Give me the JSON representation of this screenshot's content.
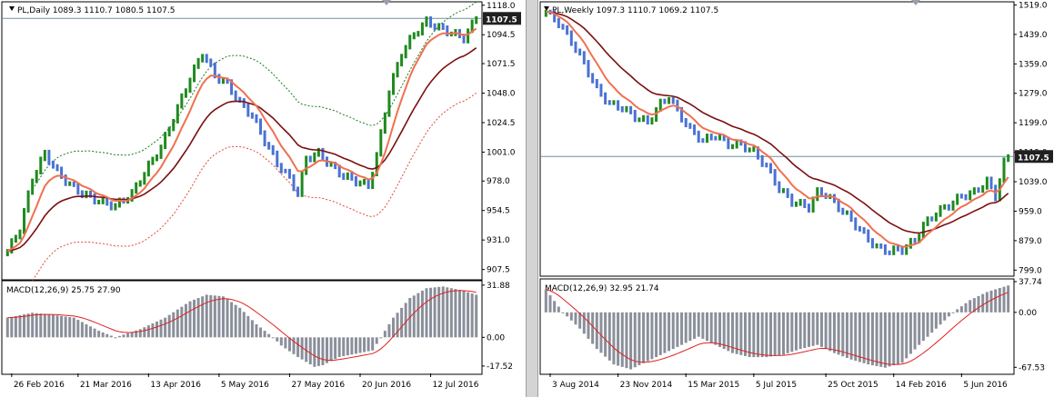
{
  "colors": {
    "bull": "#1f8a1f",
    "bear": "#4a72d4",
    "ema_fast": "#f07050",
    "ema_slow": "#7a1010",
    "env_upper": "#1a7a1a",
    "env_lower": "#e04a3a",
    "macd_hist": "#8a8f9a",
    "macd_signal": "#e02020",
    "price_line": "#6b8fa3",
    "chart_bg": "#ffffff",
    "axis_bg": "#ffffff",
    "divider": "#c0c0c0",
    "price_label_bg": "#202020",
    "price_label_fg": "#ffffff"
  },
  "charts": [
    {
      "id": "daily",
      "header": "PL,Daily  1089.3 1110.7 1080.5 1107.5",
      "price_label": "1107.5",
      "current_price": 1107.5,
      "price_min": 900,
      "price_max": 1120,
      "price_ticks": [
        "1118.0",
        "1094.5",
        "1071.5",
        "1048.0",
        "1024.5",
        "1001.0",
        "978.0",
        "954.5",
        "931.0",
        "907.5"
      ],
      "price_tick_values": [
        1118.0,
        1094.5,
        1071.5,
        1048.0,
        1024.5,
        1001.0,
        978.0,
        954.5,
        931.0,
        907.5
      ],
      "macd_header": "MACD(12,26,9) 25.75 27.90",
      "macd_min": -22,
      "macd_max": 34,
      "macd_ticks": [
        "31.88",
        "0.00",
        "-17.52"
      ],
      "macd_tick_values": [
        31.88,
        0,
        -17.52
      ],
      "dates": [
        "26 Feb 2016",
        "21 Mar 2016",
        "13 Apr 2016",
        "5 May 2016",
        "27 May 2016",
        "20 Jun 2016",
        "12 Jul 2016"
      ],
      "date_index": [
        1,
        17,
        34,
        51,
        68,
        85,
        102
      ],
      "bars": 114,
      "anchors": [
        [
          0,
          922
        ],
        [
          3,
          940
        ],
        [
          6,
          980
        ],
        [
          9,
          1000
        ],
        [
          12,
          985
        ],
        [
          15,
          975
        ],
        [
          18,
          968
        ],
        [
          22,
          962
        ],
        [
          26,
          958
        ],
        [
          30,
          968
        ],
        [
          34,
          990
        ],
        [
          37,
          1005
        ],
        [
          40,
          1028
        ],
        [
          44,
          1060
        ],
        [
          47,
          1080
        ],
        [
          50,
          1062
        ],
        [
          53,
          1055
        ],
        [
          56,
          1040
        ],
        [
          59,
          1030
        ],
        [
          62,
          1010
        ],
        [
          65,
          992
        ],
        [
          68,
          980
        ],
        [
          70,
          968
        ],
        [
          72,
          996
        ],
        [
          75,
          1000
        ],
        [
          78,
          990
        ],
        [
          81,
          982
        ],
        [
          84,
          978
        ],
        [
          87,
          974
        ],
        [
          89,
          998
        ],
        [
          92,
          1050
        ],
        [
          95,
          1080
        ],
        [
          98,
          1095
        ],
        [
          101,
          1105
        ],
        [
          104,
          1100
        ],
        [
          107,
          1096
        ],
        [
          110,
          1092
        ],
        [
          113,
          1107.5
        ]
      ],
      "envelope": true,
      "macd_anchors": [
        [
          0,
          12
        ],
        [
          6,
          15
        ],
        [
          10,
          14
        ],
        [
          16,
          12
        ],
        [
          22,
          4
        ],
        [
          26,
          0
        ],
        [
          32,
          5
        ],
        [
          38,
          12
        ],
        [
          44,
          22
        ],
        [
          48,
          26
        ],
        [
          52,
          25
        ],
        [
          56,
          18
        ],
        [
          60,
          8
        ],
        [
          64,
          0
        ],
        [
          66,
          -5
        ],
        [
          70,
          -12
        ],
        [
          74,
          -18
        ],
        [
          76,
          -17
        ],
        [
          80,
          -12
        ],
        [
          84,
          -10
        ],
        [
          88,
          -8
        ],
        [
          90,
          0
        ],
        [
          93,
          12
        ],
        [
          97,
          24
        ],
        [
          101,
          30
        ],
        [
          105,
          31
        ],
        [
          109,
          29
        ],
        [
          113,
          26
        ]
      ]
    },
    {
      "id": "weekly",
      "header": "PL,Weekly  1097.3 1110.7 1069.2 1107.5",
      "price_label": "1107.5",
      "current_price": 1107.5,
      "price_min": 785,
      "price_max": 1525,
      "price_ticks": [
        "1519.0",
        "1439.0",
        "1359.0",
        "1279.0",
        "1199.0",
        "1119.0",
        "1039.0",
        "959.0",
        "879.0",
        "799.0"
      ],
      "price_tick_values": [
        1519.0,
        1439.0,
        1359.0,
        1279.0,
        1199.0,
        1119.0,
        1039.0,
        959.0,
        879.0,
        799.0
      ],
      "macd_header": "MACD(12,26,9) 32.95 21.74",
      "macd_min": -75,
      "macd_max": 40,
      "macd_ticks": [
        "37.74",
        "0.00",
        "-67.53"
      ],
      "macd_tick_values": [
        37.74,
        0,
        -67.53
      ],
      "dates": [
        "3 Aug 2014",
        "23 Nov 2014",
        "15 Mar 2015",
        "5 Jul 2015",
        "25 Oct 2015",
        "14 Feb 2016",
        "5 Jun 2016"
      ],
      "date_index": [
        1,
        17,
        33,
        49,
        66,
        82,
        98
      ],
      "bars": 110,
      "anchors": [
        [
          0,
          1500
        ],
        [
          3,
          1470
        ],
        [
          6,
          1420
        ],
        [
          9,
          1360
        ],
        [
          12,
          1290
        ],
        [
          15,
          1250
        ],
        [
          18,
          1240
        ],
        [
          21,
          1215
        ],
        [
          24,
          1200
        ],
        [
          27,
          1250
        ],
        [
          29,
          1270
        ],
        [
          31,
          1230
        ],
        [
          34,
          1180
        ],
        [
          37,
          1150
        ],
        [
          40,
          1165
        ],
        [
          43,
          1140
        ],
        [
          46,
          1140
        ],
        [
          49,
          1120
        ],
        [
          52,
          1080
        ],
        [
          55,
          1020
        ],
        [
          58,
          985
        ],
        [
          62,
          970
        ],
        [
          64,
          1010
        ],
        [
          66,
          1005
        ],
        [
          69,
          970
        ],
        [
          72,
          935
        ],
        [
          75,
          895
        ],
        [
          78,
          860
        ],
        [
          81,
          850
        ],
        [
          84,
          855
        ],
        [
          87,
          880
        ],
        [
          89,
          920
        ],
        [
          92,
          955
        ],
        [
          95,
          975
        ],
        [
          98,
          1000
        ],
        [
          101,
          1010
        ],
        [
          104,
          1040
        ],
        [
          106,
          1000
        ],
        [
          108,
          1090
        ],
        [
          109,
          1107.5
        ]
      ],
      "envelope": false,
      "macd_anchors": [
        [
          0,
          28
        ],
        [
          4,
          0
        ],
        [
          8,
          -20
        ],
        [
          12,
          -45
        ],
        [
          16,
          -64
        ],
        [
          20,
          -70
        ],
        [
          24,
          -60
        ],
        [
          28,
          -50
        ],
        [
          32,
          -40
        ],
        [
          36,
          -30
        ],
        [
          40,
          -40
        ],
        [
          44,
          -50
        ],
        [
          48,
          -55
        ],
        [
          52,
          -55
        ],
        [
          56,
          -52
        ],
        [
          60,
          -45
        ],
        [
          64,
          -40
        ],
        [
          68,
          -50
        ],
        [
          72,
          -58
        ],
        [
          76,
          -64
        ],
        [
          80,
          -68
        ],
        [
          84,
          -62
        ],
        [
          88,
          -40
        ],
        [
          92,
          -20
        ],
        [
          96,
          0
        ],
        [
          100,
          15
        ],
        [
          104,
          25
        ],
        [
          107,
          30
        ],
        [
          109,
          33
        ]
      ]
    }
  ]
}
